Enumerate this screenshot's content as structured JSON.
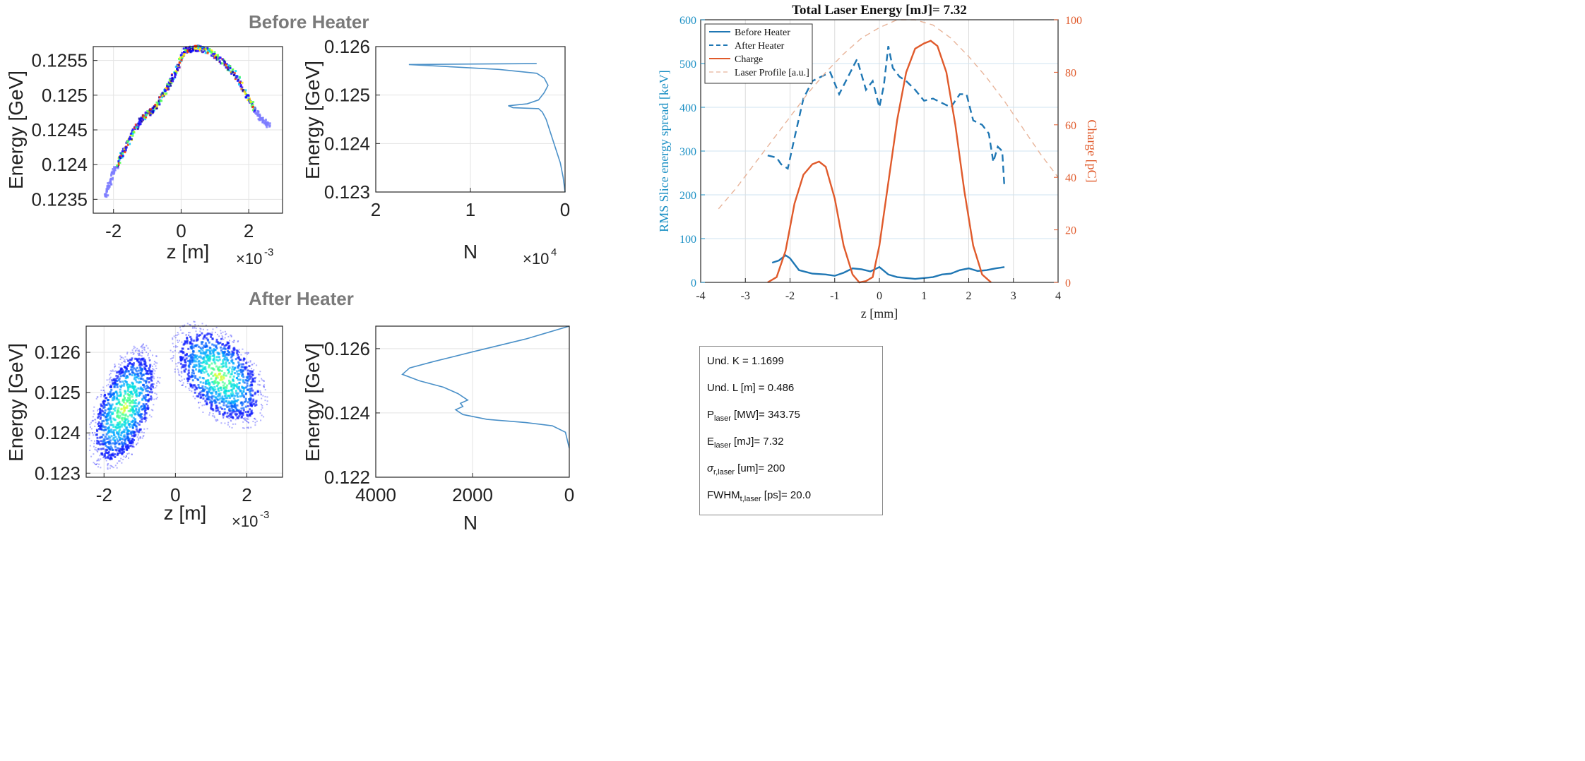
{
  "sections": {
    "before_title": "Before Heater",
    "after_title": "After Heater"
  },
  "chart_data": [
    {
      "id": "before_scatter",
      "type": "heatmap",
      "xlabel": "z [m]",
      "x_exponent": "×10",
      "x_exp_power": "-3",
      "ylabel": "Energy [GeV]",
      "xlim": [
        -2.6,
        3.0
      ],
      "ylim": [
        0.1233,
        0.1257
      ],
      "x_ticks": [
        "-2",
        "0",
        "2"
      ],
      "x_tick_values": [
        -2,
        0,
        2
      ],
      "y_ticks": [
        "0.1235",
        "0.124",
        "0.1245",
        "0.125",
        "0.1255"
      ],
      "y_tick_values": [
        0.1235,
        0.124,
        0.1245,
        0.125,
        0.1255
      ],
      "curve_z_mm": [
        -2.25,
        -2.0,
        -1.7,
        -1.4,
        -1.1,
        -0.8,
        -0.5,
        -0.2,
        0.1,
        0.4,
        0.8,
        1.2,
        1.6,
        2.0,
        2.3,
        2.6
      ],
      "curve_energy": [
        0.12355,
        0.1239,
        0.1242,
        0.1245,
        0.1247,
        0.1248,
        0.12505,
        0.1253,
        0.12565,
        0.12568,
        0.12565,
        0.1255,
        0.1253,
        0.12495,
        0.1247,
        0.12455
      ]
    },
    {
      "id": "before_hist",
      "type": "line",
      "xlabel": "N",
      "x_exponent": "×10",
      "x_exp_power": "4",
      "ylabel": "Energy [GeV]",
      "xlim": [
        2,
        0
      ],
      "ylim": [
        0.123,
        0.126
      ],
      "x_ticks": [
        "2",
        "1",
        "0"
      ],
      "x_tick_values": [
        2,
        1,
        0
      ],
      "y_ticks": [
        "0.123",
        "0.124",
        "0.125",
        "0.126"
      ],
      "y_tick_values": [
        0.123,
        0.124,
        0.125,
        0.126
      ],
      "N_e4": [
        0,
        0.02,
        0.05,
        0.1,
        0.15,
        0.2,
        0.24,
        0.28,
        0.55,
        0.6,
        0.4,
        0.28,
        0.22,
        0.18,
        0.22,
        0.3,
        0.7,
        1.65,
        0.3
      ],
      "energy": [
        0.123,
        0.1233,
        0.1236,
        0.1239,
        0.1242,
        0.1245,
        0.12465,
        0.12472,
        0.12474,
        0.12478,
        0.12482,
        0.1249,
        0.12505,
        0.1252,
        0.12535,
        0.12545,
        0.12553,
        0.12563,
        0.12565
      ]
    },
    {
      "id": "after_scatter",
      "type": "heatmap",
      "xlabel": "z [m]",
      "x_exponent": "×10",
      "x_exp_power": "-3",
      "ylabel": "Energy [GeV]",
      "xlim": [
        -2.5,
        3.0
      ],
      "ylim": [
        0.1229,
        0.12665
      ],
      "x_ticks": [
        "-2",
        "0",
        "2"
      ],
      "x_tick_values": [
        -2,
        0,
        2
      ],
      "y_ticks": [
        "0.123",
        "0.124",
        "0.125",
        "0.126"
      ],
      "y_tick_values": [
        0.123,
        0.124,
        0.125,
        0.126
      ]
    },
    {
      "id": "after_hist",
      "type": "line",
      "xlabel": "N",
      "ylabel": "Energy [GeV]",
      "xlim": [
        4000,
        0
      ],
      "ylim": [
        0.122,
        0.1267
      ],
      "x_ticks": [
        "4000",
        "2000",
        "0"
      ],
      "x_tick_values": [
        4000,
        2000,
        0
      ],
      "y_ticks": [
        "0.122",
        "0.124",
        "0.126"
      ],
      "y_tick_values": [
        0.122,
        0.124,
        0.126
      ],
      "N": [
        0,
        80,
        350,
        900,
        1700,
        2200,
        2350,
        2200,
        2250,
        2100,
        2300,
        2600,
        3100,
        3450,
        3300,
        2800,
        2000,
        900,
        0
      ],
      "energy": [
        0.1229,
        0.1234,
        0.1236,
        0.1237,
        0.1238,
        0.12395,
        0.1241,
        0.1242,
        0.1243,
        0.1244,
        0.1246,
        0.1248,
        0.125,
        0.1252,
        0.1254,
        0.1256,
        0.1259,
        0.1263,
        0.1267
      ]
    },
    {
      "id": "laser_energy",
      "type": "line",
      "title": "Total Laser Energy [mJ]= 7.32",
      "xlabel": "z [mm]",
      "ylabel": "RMS Slice energy spread [keV]",
      "ylabel_right": "Charge [pC]",
      "xlim": [
        -4,
        4
      ],
      "ylim": [
        0,
        600
      ],
      "ylim_right": [
        0,
        100
      ],
      "x_ticks": [
        "-4",
        "-3",
        "-2",
        "-1",
        "0",
        "1",
        "2",
        "3",
        "4"
      ],
      "x_tick_values": [
        -4,
        -3,
        -2,
        -1,
        0,
        1,
        2,
        3,
        4
      ],
      "y_ticks": [
        "0",
        "100",
        "200",
        "300",
        "400",
        "500",
        "600"
      ],
      "y_tick_values": [
        0,
        100,
        200,
        300,
        400,
        500,
        600
      ],
      "y_ticks_right": [
        "0",
        "20",
        "40",
        "60",
        "80",
        "100"
      ],
      "y_tick_values_right": [
        0,
        20,
        40,
        60,
        80,
        100
      ],
      "legend_position": "top-left",
      "colors": {
        "blue": "#1f77b4",
        "orange": "#e05a2b",
        "laser": "#e8b49a",
        "axis_left": "#1a8fc4",
        "axis_right": "#e05a2b"
      },
      "series": [
        {
          "name": "Before Heater",
          "axis": "left",
          "style": "solid",
          "color": "#1f77b4",
          "x": [
            -2.4,
            -2.25,
            -2.1,
            -2.0,
            -1.8,
            -1.5,
            -1.2,
            -1.0,
            -0.8,
            -0.6,
            -0.4,
            -0.2,
            0.0,
            0.2,
            0.4,
            0.6,
            0.8,
            1.0,
            1.2,
            1.4,
            1.6,
            1.8,
            2.0,
            2.2,
            2.4,
            2.6,
            2.8
          ],
          "y": [
            45,
            50,
            62,
            55,
            28,
            20,
            18,
            15,
            22,
            32,
            30,
            25,
            35,
            18,
            12,
            10,
            8,
            10,
            12,
            18,
            20,
            28,
            32,
            26,
            28,
            32,
            35
          ]
        },
        {
          "name": "After Heater",
          "axis": "left",
          "style": "dashed",
          "color": "#1f77b4",
          "x": [
            -2.5,
            -2.3,
            -2.2,
            -2.05,
            -1.9,
            -1.7,
            -1.5,
            -1.3,
            -1.1,
            -0.9,
            -0.7,
            -0.5,
            -0.3,
            -0.15,
            0.0,
            0.1,
            0.2,
            0.3,
            0.45,
            0.6,
            0.8,
            1.0,
            1.2,
            1.4,
            1.6,
            1.8,
            1.95,
            2.1,
            2.3,
            2.45,
            2.55,
            2.65,
            2.75,
            2.8
          ],
          "y": [
            290,
            285,
            270,
            260,
            330,
            420,
            460,
            470,
            480,
            430,
            470,
            510,
            440,
            460,
            400,
            450,
            540,
            490,
            470,
            460,
            440,
            415,
            420,
            410,
            400,
            430,
            430,
            370,
            360,
            340,
            275,
            310,
            300,
            215
          ]
        },
        {
          "name": "Charge",
          "axis": "right",
          "style": "solid",
          "color": "#e05a2b",
          "x": [
            -2.5,
            -2.3,
            -2.1,
            -1.9,
            -1.7,
            -1.5,
            -1.35,
            -1.2,
            -1.0,
            -0.8,
            -0.6,
            -0.45,
            -0.3,
            -0.15,
            0.0,
            0.2,
            0.4,
            0.6,
            0.8,
            1.0,
            1.15,
            1.3,
            1.5,
            1.7,
            1.9,
            2.1,
            2.3,
            2.5
          ],
          "y": [
            0,
            2,
            12,
            30,
            41,
            45,
            46,
            44,
            32,
            14,
            3,
            0,
            0.5,
            2,
            14,
            38,
            62,
            80,
            89,
            91,
            92,
            90,
            80,
            60,
            35,
            14,
            3,
            0
          ]
        },
        {
          "name": "Laser Profile [a.u.]",
          "axis": "right",
          "style": "dashed",
          "color": "#e8b49a",
          "x": [
            -3.6,
            -3.2,
            -2.8,
            -2.4,
            -2.0,
            -1.6,
            -1.2,
            -0.8,
            -0.4,
            0.0,
            0.4,
            0.8,
            1.2,
            1.6,
            2.0,
            2.4,
            2.8,
            3.2,
            3.6,
            4.0
          ],
          "y": [
            28,
            36,
            45,
            54,
            63,
            72,
            80,
            87,
            93,
            97,
            100,
            100,
            98,
            93,
            86,
            78,
            69,
            59,
            49,
            40
          ]
        }
      ]
    }
  ],
  "params": {
    "und_k": "Und. K = 1.1699",
    "und_l": "Und. L [m] = 0.486",
    "p_main": "P",
    "p_sub": "laser",
    "p_rest": " [MW]= 343.75",
    "e_main": "E",
    "e_sub": "laser",
    "e_rest": " [mJ]= 7.32",
    "s_main": "σ",
    "s_sub": "r,laser",
    "s_rest": " [um]= 200",
    "f_main": "FWHM",
    "f_sub": "t,laser",
    "f_rest": " [ps]= 20.0"
  }
}
